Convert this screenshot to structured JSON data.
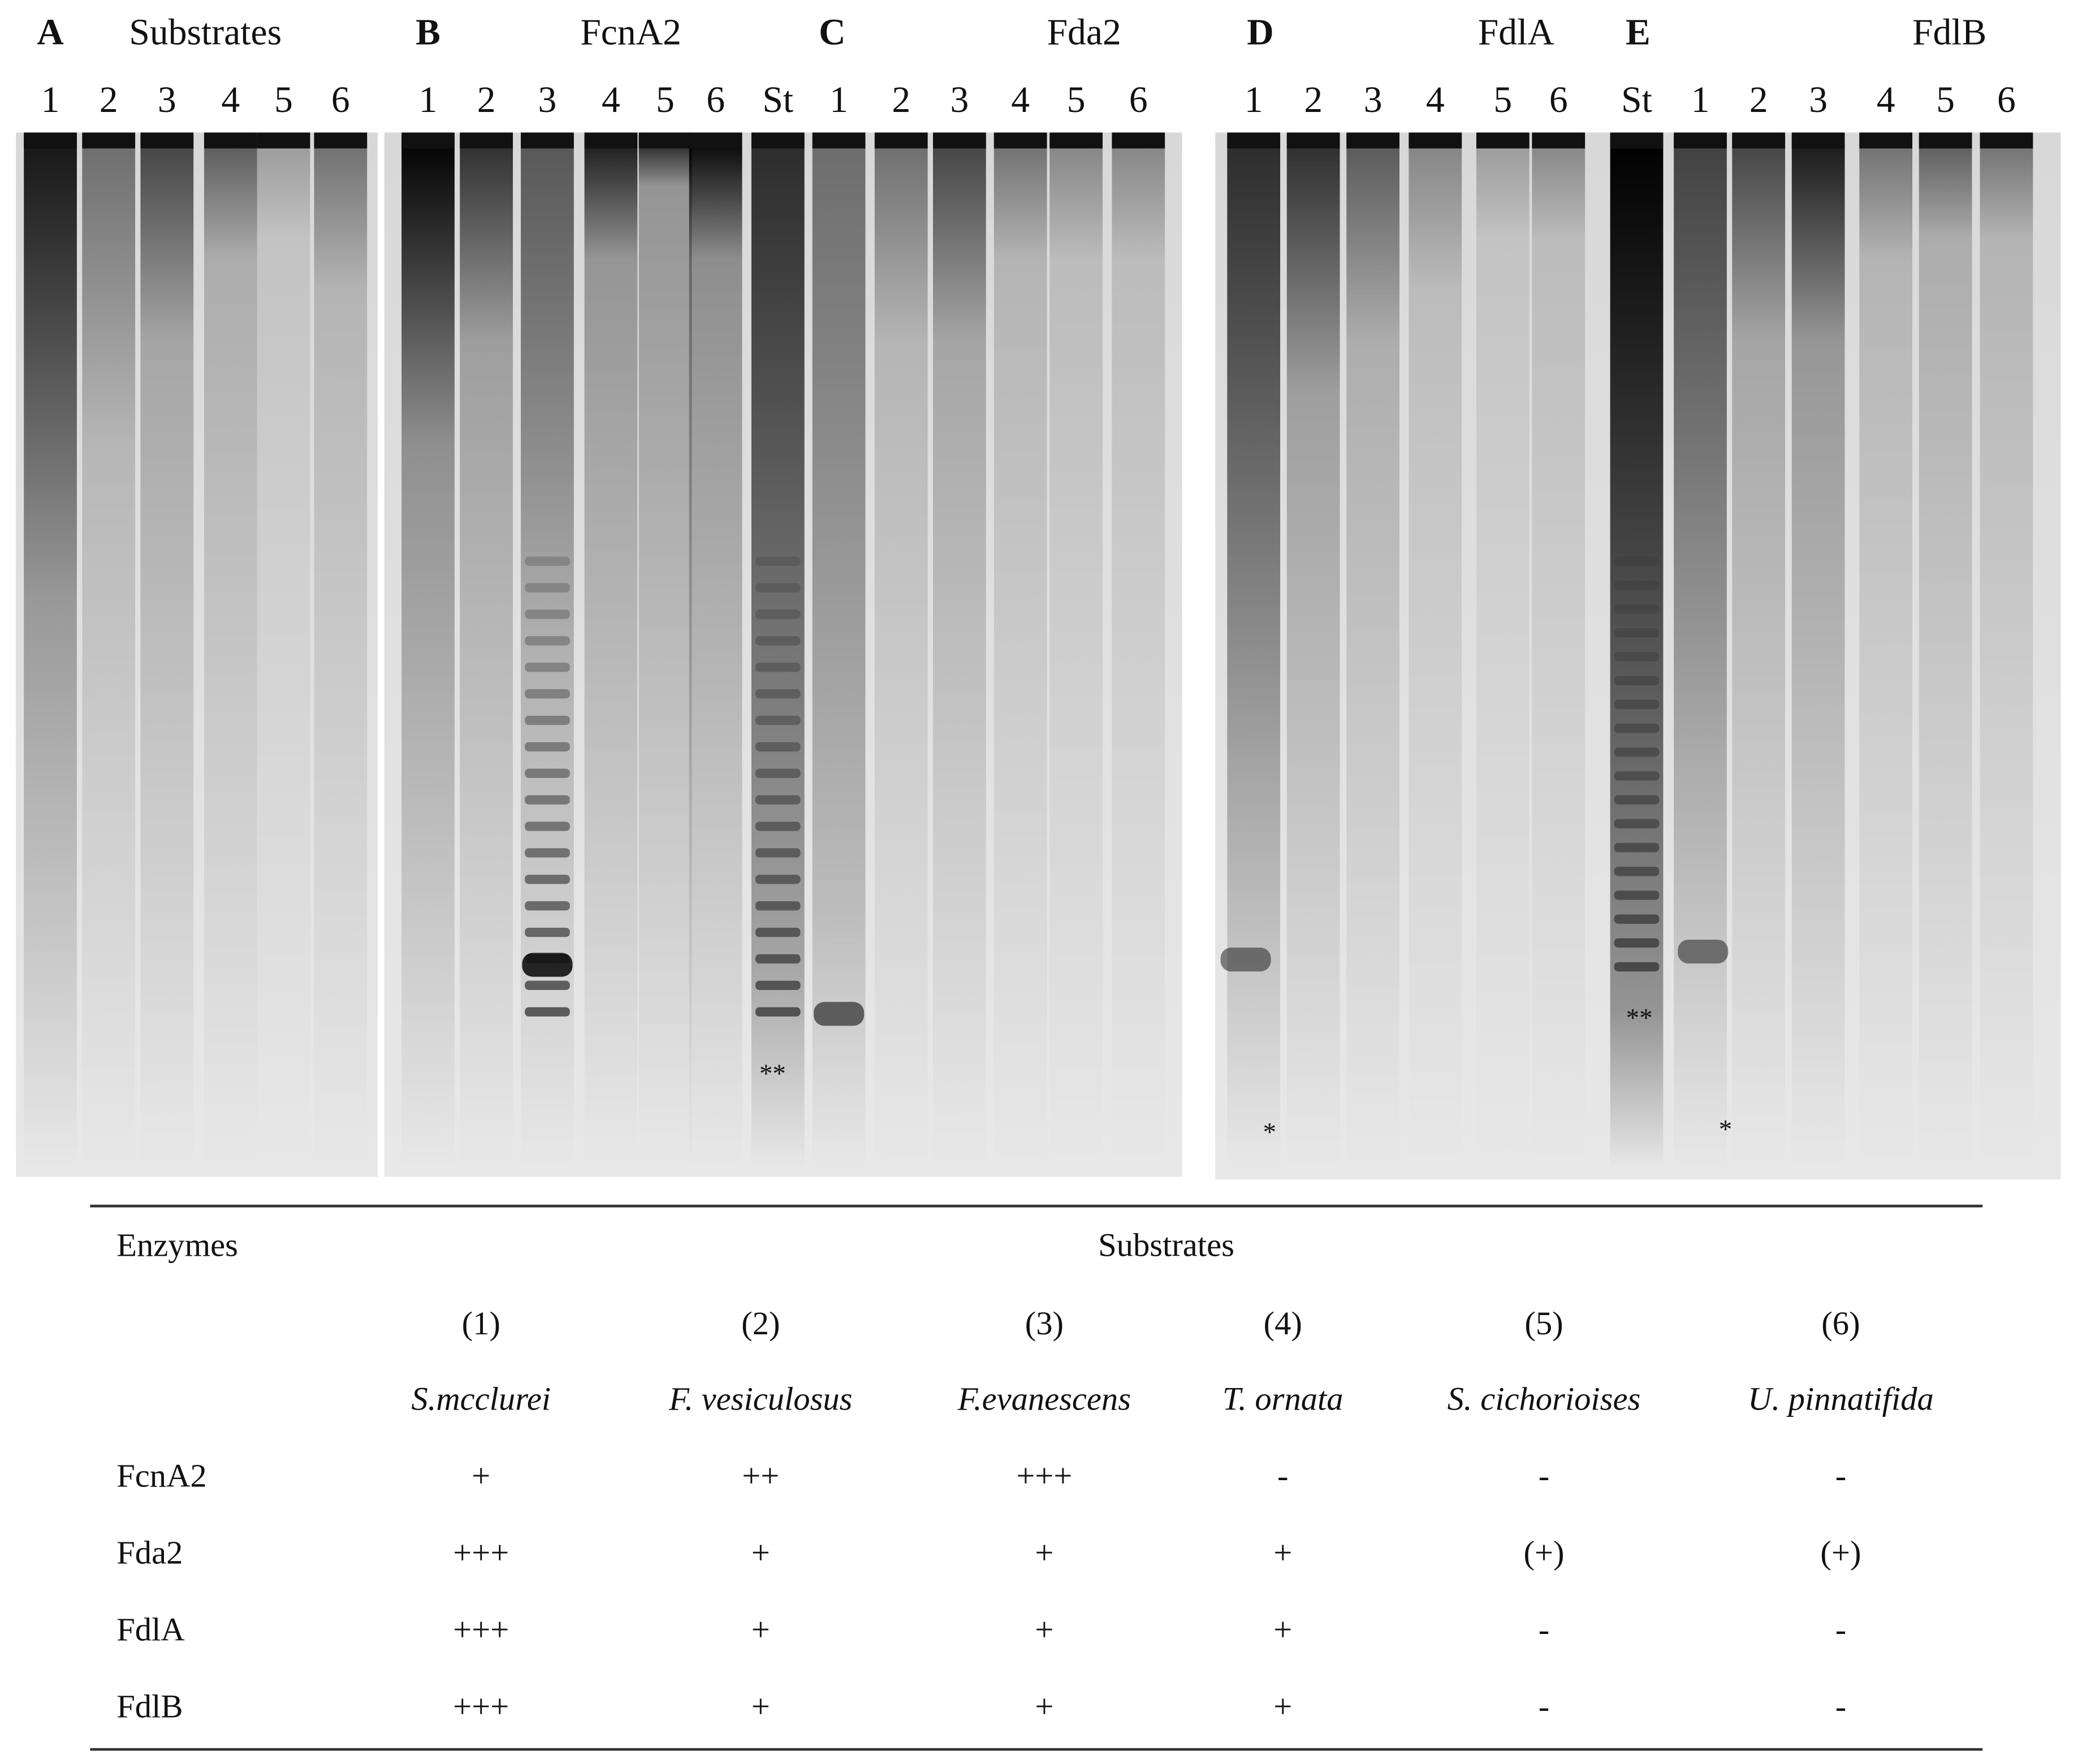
{
  "panels": [
    {
      "letter": "A",
      "title": "Substrates",
      "lanes": [
        "1",
        "2",
        "3",
        "4",
        "5",
        "6"
      ]
    },
    {
      "letter": "B",
      "title": "FcnA2",
      "lanes": [
        "1",
        "2",
        "3",
        "4",
        "5",
        "6"
      ]
    },
    {
      "letter": "C",
      "title": "Fda2",
      "lanes": [
        "St",
        "1",
        "2",
        "3",
        "4",
        "5",
        "6"
      ]
    },
    {
      "letter": "D",
      "title": "FdlA",
      "lanes": [
        "1",
        "2",
        "3",
        "4",
        "5",
        "6"
      ]
    },
    {
      "letter": "E",
      "title": "FdlB",
      "lanes": [
        "St",
        "1",
        "2",
        "3",
        "4",
        "5",
        "6"
      ]
    }
  ],
  "markers": [
    "**",
    "**",
    "*",
    "*"
  ],
  "table": {
    "header": [
      "Enzymes",
      "Substrates"
    ],
    "numbers": [
      "(1)",
      "(2)",
      "(3)",
      "(4)",
      "(5)",
      "(6)"
    ],
    "species": [
      "S.mcclurei",
      "F. vesiculosus",
      "F.evanescens",
      "T. ornata",
      "S. cichorioises",
      "U. pinnatifida"
    ],
    "rows": [
      [
        "FcnA2",
        "+",
        "++",
        "+++",
        "-",
        "-",
        "-"
      ],
      [
        "Fda2",
        "+++",
        "+",
        "+",
        "+",
        "(+)",
        "(+)"
      ],
      [
        "FdlA",
        "+++",
        "+",
        "+",
        "+",
        "-",
        "-"
      ],
      [
        "FdlB",
        "+++",
        "+",
        "+",
        "+",
        "-",
        "-"
      ]
    ]
  }
}
